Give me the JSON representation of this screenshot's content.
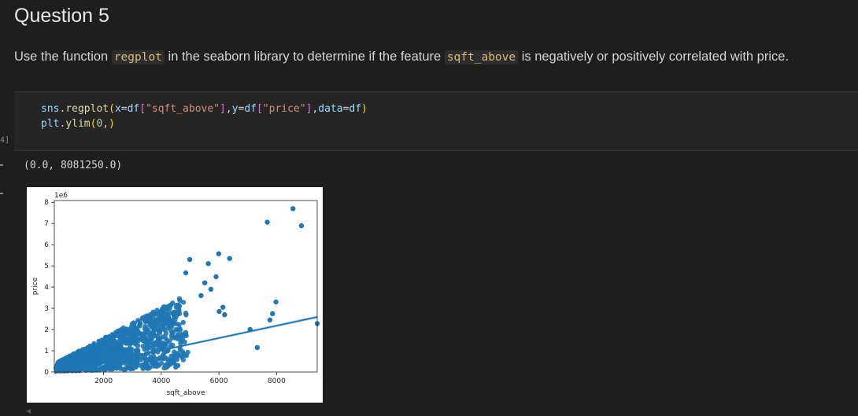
{
  "heading": "Question 5",
  "description": {
    "part1": "Use the function ",
    "code1": "regplot",
    "part2": " in the seaborn library to determine if the feature ",
    "code2": "sqft_above",
    "part3": " is negatively or positively correlated with price."
  },
  "cell": {
    "execution_count": "4]",
    "code_line1": "sns.regplot(x=df[\"sqft_above\"],y=df[\"price\"],data=df)",
    "code_line2": "plt.ylim(0,)"
  },
  "output_text": "(0.0, 8081250.0)",
  "chart_data": {
    "type": "scatter",
    "xlabel": "sqft_above",
    "ylabel": "price",
    "y_offset_label": "1e6",
    "xlim": [
      290,
      9410
    ],
    "ylim": [
      0,
      8.08125
    ],
    "xticks": [
      "2000",
      "4000",
      "6000",
      "8000"
    ],
    "yticks": [
      "0",
      "1",
      "2",
      "3",
      "4",
      "5",
      "6",
      "7",
      "8"
    ],
    "point_color": "#1f77b4",
    "regression_line": {
      "x": [
        290,
        9410
      ],
      "y": [
        -0.06,
        2.59
      ]
    },
    "outliers": [
      {
        "x": 8570,
        "y": 7.7
      },
      {
        "x": 7680,
        "y": 7.06
      },
      {
        "x": 8860,
        "y": 6.89
      },
      {
        "x": 5990,
        "y": 5.57
      },
      {
        "x": 5630,
        "y": 5.11
      },
      {
        "x": 6370,
        "y": 5.35
      },
      {
        "x": 4990,
        "y": 5.3
      },
      {
        "x": 4850,
        "y": 4.67
      },
      {
        "x": 5900,
        "y": 4.49
      },
      {
        "x": 5510,
        "y": 4.2
      },
      {
        "x": 5720,
        "y": 3.9
      },
      {
        "x": 5380,
        "y": 3.6
      },
      {
        "x": 7980,
        "y": 3.3
      },
      {
        "x": 7860,
        "y": 2.75
      },
      {
        "x": 7770,
        "y": 2.45
      },
      {
        "x": 7330,
        "y": 1.15
      },
      {
        "x": 9410,
        "y": 2.28
      },
      {
        "x": 7080,
        "y": 2.0
      },
      {
        "x": 6140,
        "y": 3.05
      },
      {
        "x": 6010,
        "y": 2.85
      },
      {
        "x": 6200,
        "y": 2.7
      }
    ]
  }
}
